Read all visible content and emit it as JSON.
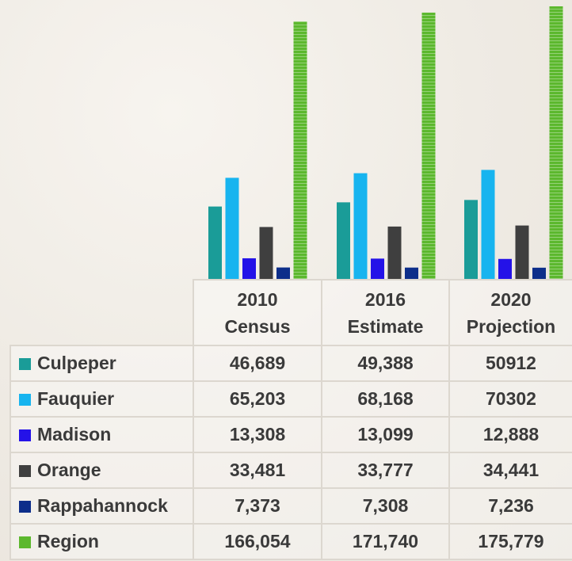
{
  "chart_data": {
    "type": "bar",
    "categories": [
      "2010 Census",
      "2016 Estimate",
      "2020 Projection"
    ],
    "series": [
      {
        "name": "Culpeper",
        "color": "#1a9c98",
        "values": [
          46689,
          49388,
          50912
        ],
        "value_labels": [
          "46,689",
          "49,388",
          "50912"
        ]
      },
      {
        "name": "Fauquier",
        "color": "#17b4ef",
        "values": [
          65203,
          68168,
          70302
        ],
        "value_labels": [
          "65,203",
          "68,168",
          "70302"
        ]
      },
      {
        "name": "Madison",
        "color": "#2412e8",
        "values": [
          13308,
          13099,
          12888
        ],
        "value_labels": [
          "13,308",
          "13,099",
          "12,888"
        ]
      },
      {
        "name": "Orange",
        "color": "#3f3f3f",
        "values": [
          33481,
          33777,
          34441
        ],
        "value_labels": [
          "33,481",
          "33,777",
          "34,441"
        ]
      },
      {
        "name": "Rappahannock",
        "color": "#0d2e8a",
        "values": [
          7373,
          7308,
          7236
        ],
        "value_labels": [
          "7,373",
          "7,308",
          "7,236"
        ]
      },
      {
        "name": "Region",
        "color": "#5cb82e",
        "values": [
          166054,
          171740,
          175779
        ],
        "value_labels": [
          "166,054",
          "171,740",
          "175,779"
        ]
      }
    ]
  }
}
